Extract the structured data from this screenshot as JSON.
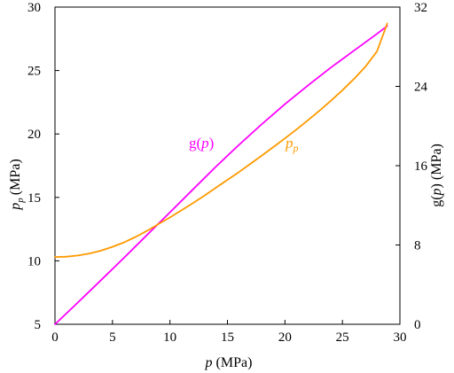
{
  "chart_data": {
    "type": "line",
    "title": "",
    "grid": false,
    "x_axis": {
      "label": "(MPa)",
      "label_symbol": "p",
      "range": [
        0,
        30
      ],
      "ticks": [
        "0",
        "5",
        "10",
        "15",
        "20",
        "25",
        "30"
      ]
    },
    "y_left_axis": {
      "label": "(MPa)",
      "label_symbol": "p",
      "label_subscript": "p",
      "range": [
        5,
        30
      ],
      "ticks": [
        "5",
        "10",
        "15",
        "20",
        "25",
        "30"
      ]
    },
    "y_right_axis": {
      "label_prefix": "g(",
      "label_symbol": "p",
      "label_suffix": ") (MPa)",
      "range": [
        0,
        32
      ],
      "ticks": [
        "0",
        "8",
        "16",
        "24",
        "32"
      ]
    },
    "series": [
      {
        "name_prefix": "g(",
        "name_symbol": "p",
        "name_suffix": ")",
        "axis": "right",
        "color": "#ff00ff",
        "x": [
          0,
          2,
          4,
          6,
          8,
          10,
          12,
          14,
          16,
          18,
          20,
          22,
          24,
          26,
          28,
          28.9
        ],
        "y": [
          0,
          2.2,
          4.45,
          6.7,
          9.0,
          11.3,
          13.6,
          15.9,
          18.1,
          20.2,
          22.2,
          24.1,
          25.9,
          27.6,
          29.3,
          30.1
        ]
      },
      {
        "name_symbol": "p",
        "name_subscript": "p",
        "axis": "left",
        "color": "#ff9900",
        "x": [
          0,
          1,
          2,
          3,
          4,
          5,
          6,
          7,
          8,
          9,
          10,
          11,
          12,
          13,
          14,
          15,
          16,
          17,
          18,
          19,
          20,
          21,
          22,
          23,
          24,
          25,
          26,
          27,
          28,
          28.9
        ],
        "y": [
          10.3,
          10.33,
          10.42,
          10.58,
          10.8,
          11.1,
          11.45,
          11.88,
          12.36,
          12.9,
          13.42,
          13.98,
          14.55,
          15.15,
          15.76,
          16.38,
          17.0,
          17.65,
          18.3,
          18.97,
          19.65,
          20.35,
          21.08,
          21.83,
          22.62,
          23.45,
          24.33,
          25.3,
          26.5,
          28.7
        ]
      }
    ]
  }
}
